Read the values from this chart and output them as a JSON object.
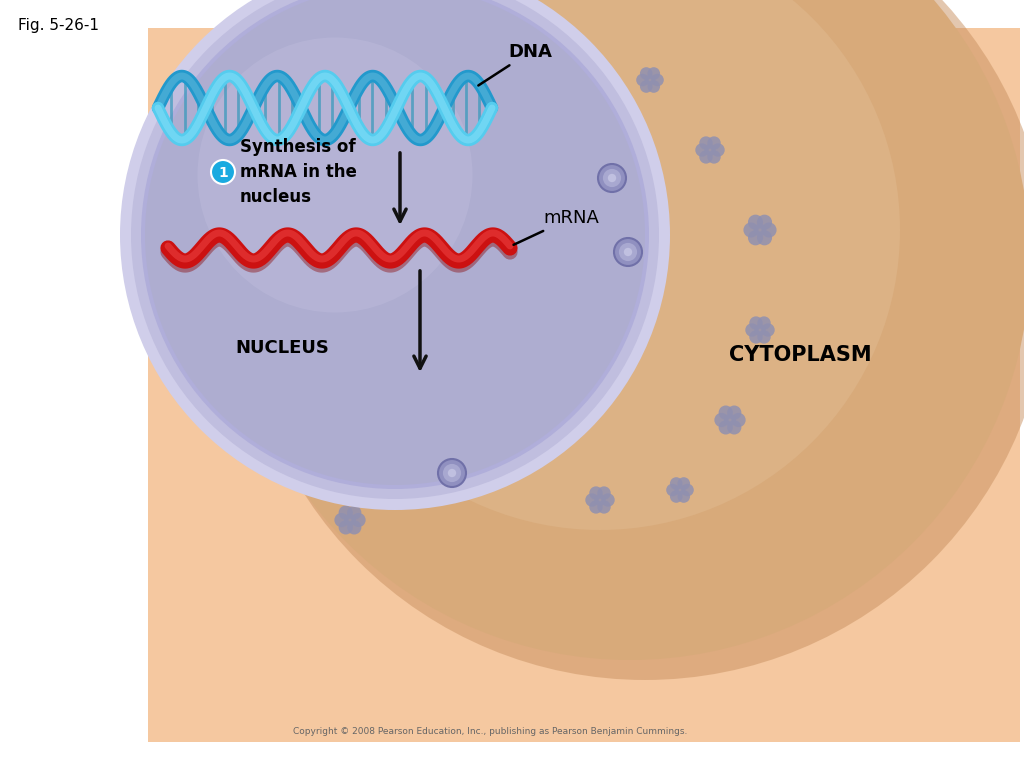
{
  "fig_label": "Fig. 5-26-1",
  "background_color": "#FFFFFF",
  "image_bg_color": "#F5C8A0",
  "cell_outer_color": "#D4A87A",
  "cell_inner_color": "#C89860",
  "nucleus_fill": "#AEADD0",
  "nucleus_border_outer": "#D0CEEA",
  "nucleus_border_inner": "#B8B6DC",
  "cytoplasm_label": "CYTOPLASM",
  "nucleus_label": "NUCLEUS",
  "dna_label": "DNA",
  "mrna_label": "mRNA",
  "step1_label": "Synthesis of\nmRNA in the\nnucleus",
  "copyright": "Copyright © 2008 Pearson Education, Inc., publishing as Pearson Benjamin Cummings.",
  "arrow_color": "#111111",
  "step_circle_color": "#1AAAE0",
  "dna_strand1_color": "#55CCEE",
  "dna_strand2_color": "#2299CC",
  "dna_highlight": "#88E0F8",
  "mrna_dark": "#AA0000",
  "mrna_main": "#CC1111",
  "mrna_highlight": "#EE4444",
  "chromatin_color": "#9090B0",
  "pore_color": "#8888BB",
  "pore_edge": "#6666AA"
}
